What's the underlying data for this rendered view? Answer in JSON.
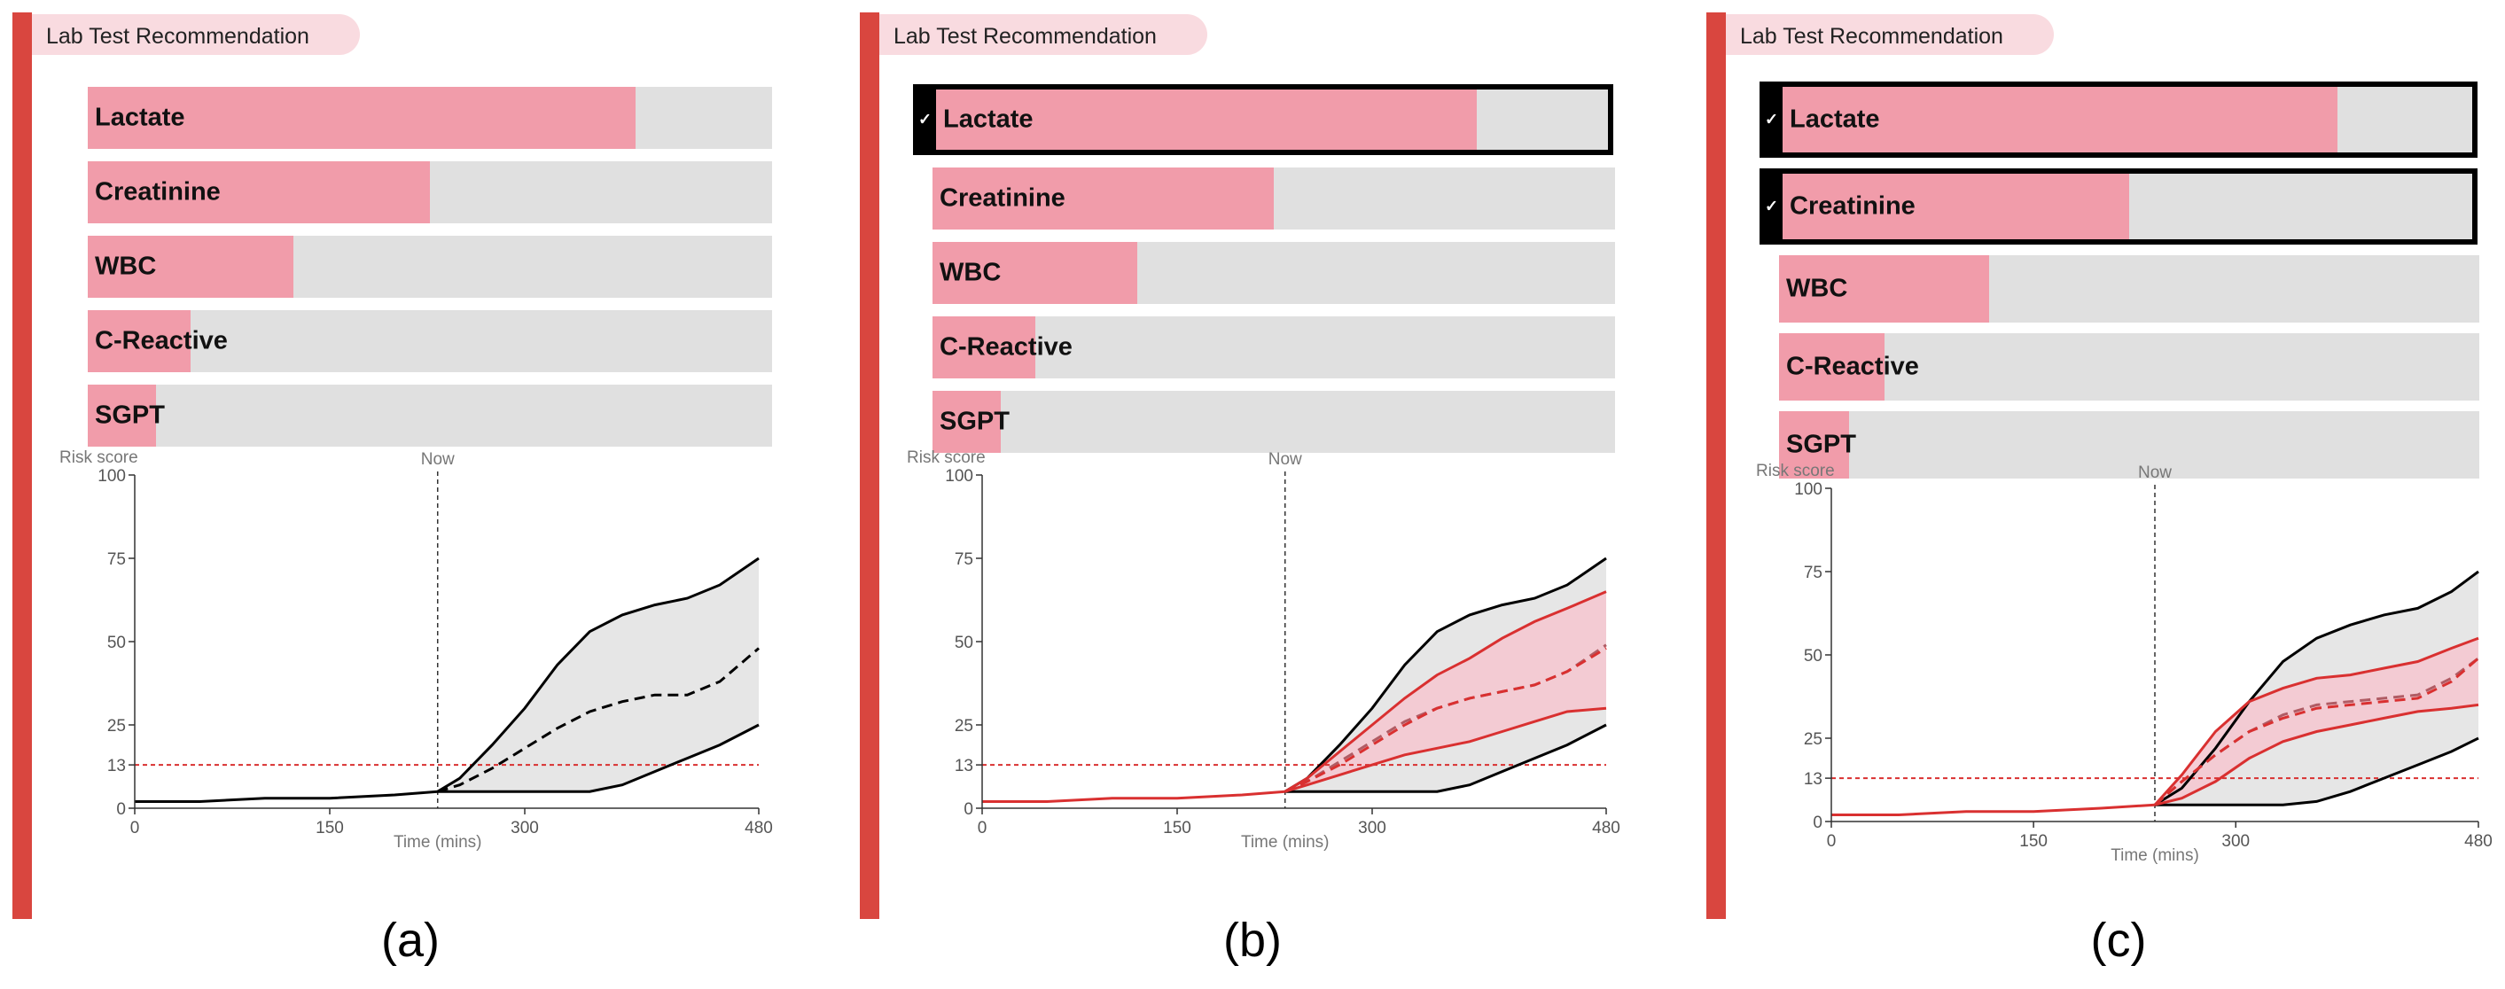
{
  "colors": {
    "accent": "#d9463f",
    "tab_bg": "#f9dbe0",
    "bar_fill": "#f19caa",
    "bar_track": "#e0e0e0",
    "baseline_band": "#e6e6e6",
    "rec_band": "#f4c6cf",
    "rec_line": "#d93030",
    "threshold": "#d93030"
  },
  "panels": [
    {
      "caption": "(a)",
      "header": "Lab Test Recommendation",
      "tests": [
        {
          "label": "Lactate",
          "value": 0.8,
          "selected": false
        },
        {
          "label": "Creatinine",
          "value": 0.5,
          "selected": false
        },
        {
          "label": "WBC",
          "value": 0.3,
          "selected": false
        },
        {
          "label": "C-Reactive",
          "value": 0.15,
          "selected": false
        },
        {
          "label": "SGPT",
          "value": 0.1,
          "selected": false
        }
      ],
      "chart_data": {
        "type": "area",
        "title": "",
        "ylabel": "Risk score",
        "xlabel": "Time (mins)",
        "xlim": [
          0,
          480
        ],
        "ylim": [
          0,
          100
        ],
        "xticks": [
          0,
          150,
          300,
          480
        ],
        "yticks": [
          0,
          13,
          25,
          50,
          75,
          100
        ],
        "now_label": "Now",
        "now_x": 233,
        "threshold": 13,
        "grid": false,
        "history": {
          "x": [
            0,
            50,
            100,
            150,
            200,
            233
          ],
          "y": [
            2,
            2,
            3,
            3,
            4,
            5
          ]
        },
        "baseline": {
          "x": [
            233,
            250,
            275,
            300,
            325,
            350,
            375,
            400,
            425,
            450,
            480
          ],
          "upper": [
            5,
            9,
            19,
            30,
            43,
            53,
            58,
            61,
            63,
            67,
            75
          ],
          "mean": [
            5,
            7,
            12,
            18,
            24,
            29,
            32,
            34,
            34,
            38,
            48
          ],
          "lower": [
            5,
            5,
            5,
            5,
            5,
            5,
            7,
            11,
            15,
            19,
            25
          ]
        },
        "recommendations": []
      }
    },
    {
      "caption": "(b)",
      "header": "Lab Test Recommendation",
      "tests": [
        {
          "label": "Lactate",
          "value": 0.8,
          "selected": true
        },
        {
          "label": "Creatinine",
          "value": 0.5,
          "selected": false
        },
        {
          "label": "WBC",
          "value": 0.3,
          "selected": false
        },
        {
          "label": "C-Reactive",
          "value": 0.15,
          "selected": false
        },
        {
          "label": "SGPT",
          "value": 0.1,
          "selected": false
        }
      ],
      "chart_data": {
        "type": "area",
        "title": "",
        "ylabel": "Risk score",
        "xlabel": "Time (mins)",
        "xlim": [
          0,
          480
        ],
        "ylim": [
          0,
          100
        ],
        "xticks": [
          0,
          150,
          300,
          480
        ],
        "yticks": [
          0,
          13,
          25,
          50,
          75,
          100
        ],
        "now_label": "Now",
        "now_x": 233,
        "threshold": 13,
        "grid": false,
        "history": {
          "x": [
            0,
            50,
            100,
            150,
            200,
            233
          ],
          "y": [
            2,
            2,
            3,
            3,
            4,
            5
          ]
        },
        "baseline": {
          "x": [
            233,
            250,
            275,
            300,
            325,
            350,
            375,
            400,
            425,
            450,
            480
          ],
          "upper": [
            5,
            9,
            19,
            30,
            43,
            53,
            58,
            61,
            63,
            67,
            75
          ],
          "mean": [
            5,
            8,
            14,
            20,
            26,
            30,
            33,
            35,
            37,
            41,
            49
          ],
          "lower": [
            5,
            5,
            5,
            5,
            5,
            5,
            7,
            11,
            15,
            19,
            25
          ]
        },
        "recommendations": [
          {
            "x": [
              233,
              250,
              275,
              300,
              325,
              350,
              375,
              400,
              425,
              450,
              480
            ],
            "upper": [
              5,
              9,
              17,
              25,
              33,
              40,
              45,
              51,
              56,
              60,
              65
            ],
            "mean": [
              5,
              8,
              13,
              19,
              25,
              30,
              33,
              35,
              37,
              41,
              48
            ],
            "lower": [
              5,
              7,
              10,
              13,
              16,
              18,
              20,
              23,
              26,
              29,
              30
            ]
          }
        ]
      }
    },
    {
      "caption": "(c)",
      "header": "Lab Test Recommendation",
      "tests": [
        {
          "label": "Lactate",
          "value": 0.8,
          "selected": true
        },
        {
          "label": "Creatinine",
          "value": 0.5,
          "selected": true
        },
        {
          "label": "WBC",
          "value": 0.3,
          "selected": false
        },
        {
          "label": "C-Reactive",
          "value": 0.15,
          "selected": false
        },
        {
          "label": "SGPT",
          "value": 0.1,
          "selected": false
        }
      ],
      "chart_data": {
        "type": "area",
        "title": "",
        "ylabel": "Risk score",
        "xlabel": "Time (mins)",
        "xlim": [
          0,
          480
        ],
        "ylim": [
          0,
          100
        ],
        "xticks": [
          0,
          150,
          300,
          480
        ],
        "yticks": [
          0,
          13,
          25,
          50,
          75,
          100
        ],
        "now_label": "Now",
        "now_x": 240,
        "threshold": 13,
        "grid": false,
        "history": {
          "x": [
            0,
            50,
            100,
            150,
            200,
            240
          ],
          "y": [
            2,
            2,
            3,
            3,
            4,
            5
          ]
        },
        "baseline": {
          "x": [
            240,
            260,
            285,
            310,
            335,
            360,
            385,
            410,
            435,
            460,
            480
          ],
          "upper": [
            5,
            10,
            22,
            36,
            48,
            55,
            59,
            62,
            64,
            69,
            75
          ],
          "mean": [
            5,
            12,
            20,
            27,
            32,
            35,
            36,
            37,
            38,
            43,
            49
          ],
          "lower": [
            5,
            5,
            5,
            5,
            5,
            6,
            9,
            13,
            17,
            21,
            25
          ]
        },
        "recommendations": [
          {
            "x": [
              240,
              260,
              285,
              310,
              335,
              360,
              385,
              410,
              435,
              460,
              480
            ],
            "upper": [
              5,
              14,
              27,
              36,
              40,
              43,
              44,
              46,
              48,
              52,
              55
            ],
            "mean": [
              5,
              12,
              20,
              27,
              31,
              34,
              35,
              36,
              37,
              42,
              49
            ],
            "lower": [
              5,
              7,
              12,
              19,
              24,
              27,
              29,
              31,
              33,
              34,
              35
            ]
          }
        ]
      }
    }
  ]
}
